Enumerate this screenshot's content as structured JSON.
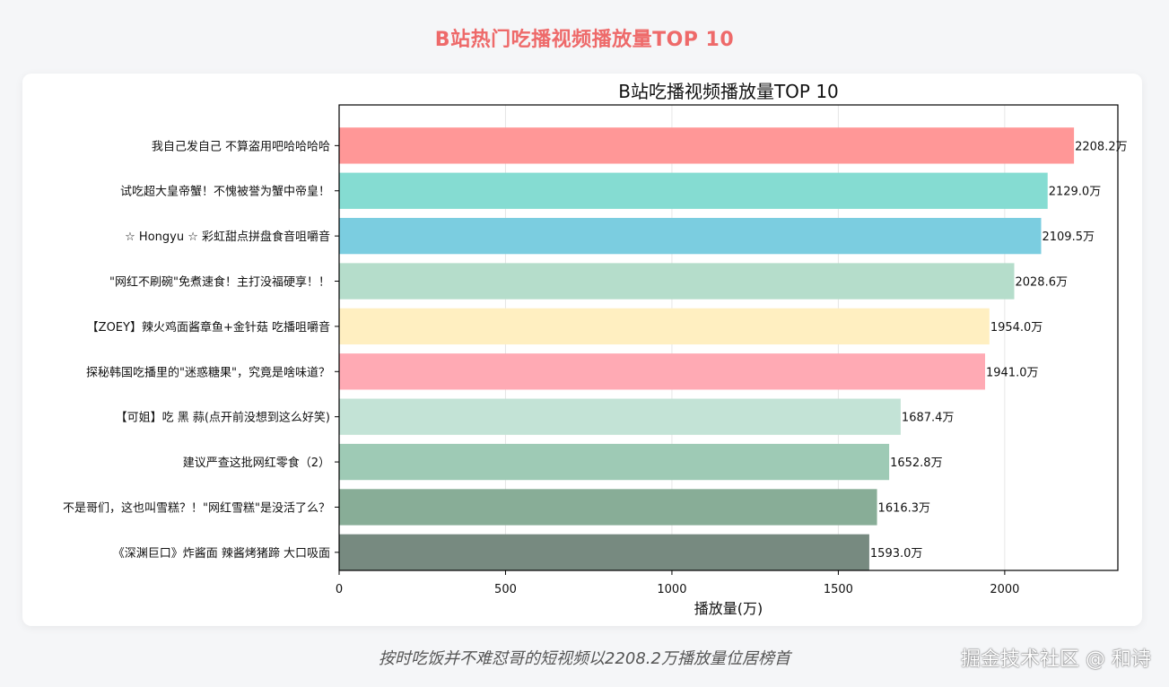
{
  "page": {
    "title": "B站热门吃播视频播放量TOP 10",
    "caption": "按时吃饭并不难怼哥的短视频以2208.2万播放量位居榜首",
    "watermark": "掘金技术社区 @ 和诗"
  },
  "chart_data": {
    "type": "bar",
    "orientation": "horizontal",
    "title": "B站吃播视频播放量TOP 10",
    "xlabel": "播放量(万)",
    "ylabel": "",
    "xlim": [
      0,
      2340
    ],
    "xticks": [
      0,
      500,
      1000,
      1500,
      2000
    ],
    "grid": "vertical",
    "value_suffix": "万",
    "categories": [
      "我自己发自己 不算盗用吧哈哈哈哈",
      "试吃超大皇帝蟹！不愧被誉为蟹中帝皇！",
      "☆ Hongyu ☆ 彩虹甜点拼盘食音咀嚼音",
      "\"网红不刷碗\"免煮速食！主打没福硬享！！",
      "【ZOEY】辣火鸡面酱章鱼+金针菇 吃播咀嚼音",
      "探秘韩国吃播里的\"迷惑糖果\"，究竟是啥味道？",
      "【可姐】吃 黑 蒜(点开前没想到这么好笑)",
      "建议严查这批网红零食（2）",
      "不是哥们，这也叫雪糕？！\"网红雪糕\"是没活了么？",
      "《深渊巨口》炸酱面 辣酱烤猪蹄 大口吸面"
    ],
    "values": [
      2208.2,
      2129.0,
      2109.5,
      2028.6,
      1954.0,
      1941.0,
      1687.4,
      1652.8,
      1616.3,
      1593.0
    ],
    "colors": [
      "#ff9797",
      "#85dcd2",
      "#7bcde0",
      "#b5ddcb",
      "#ffefc1",
      "#ffaab4",
      "#c3e3d6",
      "#9ecab5",
      "#88ad97",
      "#778a80"
    ]
  }
}
